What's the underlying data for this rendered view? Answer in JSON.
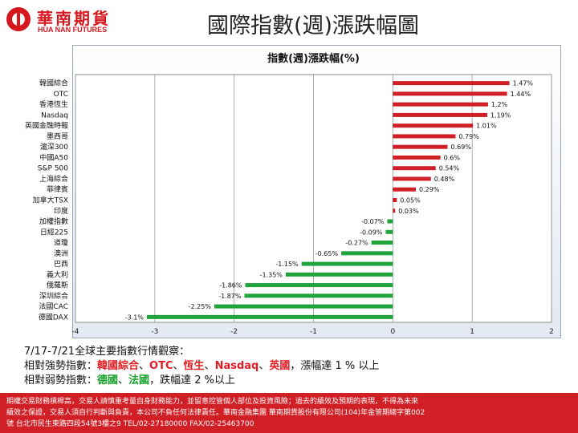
{
  "header": {
    "logo_zh": "華南期貨",
    "logo_en": "HUA NAN FUTURES",
    "title": "國際指數(週)漲跌幅圖"
  },
  "colors": {
    "positive_bar": "#d11f26",
    "negative_bar": "#1fa33a",
    "accent": "#d7171f"
  },
  "chart_data": {
    "type": "bar",
    "orientation": "horizontal",
    "title": "指數(週)漲跌幅(%)",
    "xlim": [
      -4,
      2
    ],
    "ticks": [
      "-4",
      "-3",
      "-2",
      "-1",
      "0",
      "1",
      "2"
    ],
    "grid": true,
    "categories": [
      "韓國綜合",
      "OTC",
      "香港恆生",
      "Nasdaq",
      "英國金融時報",
      "墨西哥",
      "滬深300",
      "中國A50",
      "S&P 500",
      "上海綜合",
      "菲律賓",
      "加拿大TSX",
      "印度",
      "加權指數",
      "日經225",
      "道瓊",
      "澳洲",
      "巴西",
      "義大利",
      "俄羅斯",
      "深圳綜合",
      "法國CAC",
      "德國DAX"
    ],
    "values": [
      1.47,
      1.44,
      1.2,
      1.19,
      1.01,
      0.79,
      0.69,
      0.6,
      0.54,
      0.48,
      0.29,
      0.05,
      0.03,
      -0.07,
      -0.09,
      -0.27,
      -0.65,
      -1.15,
      -1.35,
      -1.86,
      -1.87,
      -2.25,
      -3.1
    ],
    "labels": [
      "1.47%",
      "1.44%",
      "1.2%",
      "1.19%",
      "1.01%",
      "0.79%",
      "0.69%",
      "0.6%",
      "0.54%",
      "0.48%",
      "0.29%",
      "0.05%",
      "0.03%",
      "-0.07%",
      "-0.09%",
      "-0.27%",
      "-0.65%",
      "-1.15%",
      "-1.35%",
      "-1.86%",
      "-1.87%",
      "-2.25%",
      "-3.1%"
    ]
  },
  "summary": {
    "intro": "7/17-7/21全球主要指數行情觀察：",
    "strong_prefix": "相對強勢指數：",
    "strong_items": [
      "韓國綜合",
      "OTC",
      "恆生",
      "Nasdaq",
      "英國"
    ],
    "strong_suffix": "，漲幅達 1 % 以上",
    "weak_prefix": "相對弱勢指數：",
    "weak_items": [
      "德國",
      "法國"
    ],
    "weak_suffix": "，跌幅達 2 %以上",
    "separator": "、"
  },
  "footer": {
    "line1": "期權交易財務槓桿高，交易人請慎重考量自身財務能力，並留意控管個人部位及投資風險；過去的績效及預期的表現，不得為未來",
    "line2": "績效之保證，交易人須自行判斷與負責，本公司不負任何法律責任。華南金融集團 華南期貨股份有限公司(104)年金管期總字第002",
    "line3": "號 台北市民生東路四段54號3樓之9 TEL/02-27180000 FAX/02-25463700"
  }
}
